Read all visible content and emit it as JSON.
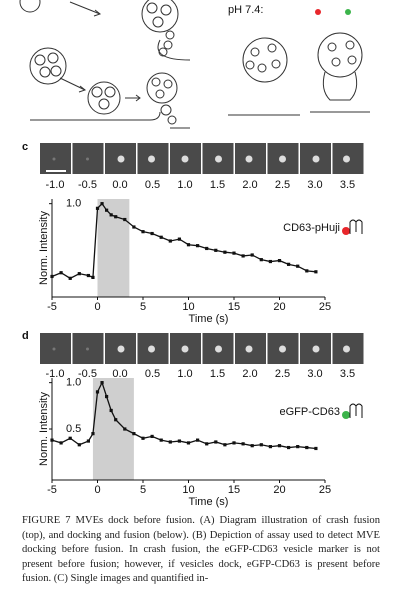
{
  "header": {
    "ph_label": "pH 7.4:"
  },
  "panels": [
    {
      "label": "c",
      "frame_labels": [
        "-1.0",
        "-0.5",
        "0.0",
        "0.5",
        "1.0",
        "1.5",
        "2.0",
        "2.5",
        "3.0",
        "3.5"
      ]
    },
    {
      "label": "d",
      "frame_labels": [
        "-1.0",
        "-0.5",
        "0.0",
        "0.5",
        "1.0",
        "1.5",
        "2.0",
        "2.5",
        "3.0",
        "3.5"
      ]
    }
  ],
  "chart_data": [
    {
      "type": "line",
      "xlabel": "Time (s)",
      "ylabel": "Norm. Intensity",
      "legend": "CD63-pHuji",
      "legend_color": "#e8262b",
      "color": "#111111",
      "x": [
        -5,
        -4,
        -3,
        -2,
        -1,
        -0.5,
        0,
        0.5,
        1,
        1.5,
        2,
        3,
        4,
        5,
        6,
        7,
        8,
        9,
        10,
        11,
        12,
        13,
        14,
        15,
        16,
        17,
        18,
        19,
        20,
        21,
        22,
        23,
        24
      ],
      "values": [
        0.22,
        0.26,
        0.2,
        0.25,
        0.23,
        0.21,
        0.95,
        1.0,
        0.93,
        0.88,
        0.86,
        0.83,
        0.75,
        0.7,
        0.68,
        0.64,
        0.6,
        0.62,
        0.56,
        0.55,
        0.52,
        0.5,
        0.48,
        0.47,
        0.44,
        0.45,
        0.4,
        0.38,
        0.39,
        0.35,
        0.33,
        0.28,
        0.27
      ],
      "xlim": [
        -5,
        25
      ],
      "xticks": [
        -5,
        0,
        5,
        10,
        15,
        20,
        25
      ],
      "ylim": [
        0,
        1.05
      ],
      "yticks": [
        {
          "value": 1,
          "label": "1.0"
        }
      ],
      "shade": [
        0,
        3.5
      ]
    },
    {
      "type": "line",
      "xlabel": "Time (s)",
      "ylabel": "Norm. Intensity",
      "legend": "eGFP-CD63",
      "legend_color": "#3cb44b",
      "color": "#111111",
      "x": [
        -5,
        -4,
        -3,
        -2,
        -1,
        -0.5,
        0,
        0.5,
        1,
        1.5,
        2,
        3,
        4,
        5,
        6,
        7,
        8,
        9,
        10,
        11,
        12,
        13,
        14,
        15,
        16,
        17,
        18,
        19,
        20,
        21,
        22,
        23,
        24
      ],
      "values": [
        0.38,
        0.35,
        0.4,
        0.33,
        0.37,
        0.45,
        0.9,
        1.0,
        0.85,
        0.7,
        0.6,
        0.5,
        0.45,
        0.4,
        0.42,
        0.38,
        0.36,
        0.37,
        0.35,
        0.38,
        0.34,
        0.36,
        0.33,
        0.35,
        0.34,
        0.32,
        0.33,
        0.31,
        0.32,
        0.3,
        0.31,
        0.3,
        0.29
      ],
      "xlim": [
        -5,
        25
      ],
      "xticks": [
        -5,
        0,
        5,
        10,
        15,
        20,
        25
      ],
      "ylim": [
        -0.05,
        1.05
      ],
      "yticks": [
        {
          "value": 1,
          "label": "1.0"
        },
        {
          "value": 0.5,
          "label": "0.5"
        }
      ],
      "shade": [
        -0.5,
        4
      ]
    }
  ],
  "caption": "FIGURE 7   MVEs dock before fusion. (A) Diagram illustration of crash fusion (top), and docking and fusion (below). (B) Depiction of assay used to detect MVE docking before fusion. In crash fusion, the eGFP-CD63 vesicle marker is not present before fusion; however, if vesicles dock, eGFP-CD63 is present before fusion. (C) Single images and quantified in-"
}
